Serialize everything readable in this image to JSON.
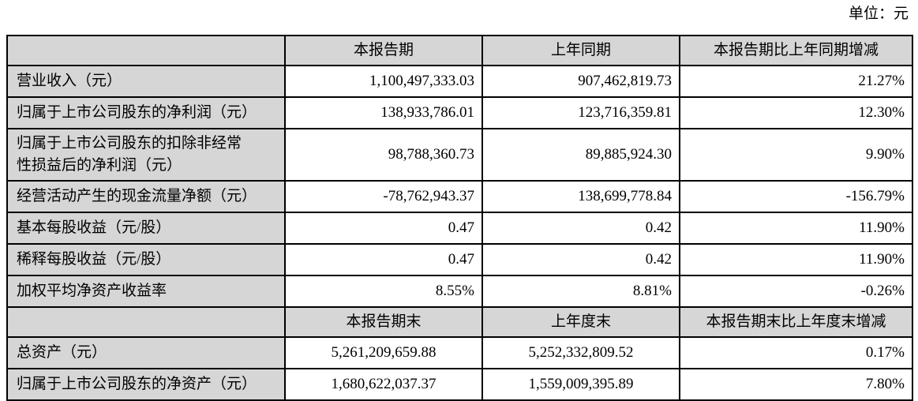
{
  "unit_label": "单位：元",
  "colors": {
    "shaded_cell_bg": "#d6d6d6",
    "border": "#000000",
    "text": "#000000",
    "page_bg": "#ffffff"
  },
  "table": {
    "rows": [
      {
        "type": "header",
        "cells": [
          "",
          "本报告期",
          "上年同期",
          "本报告期比上年同期增减"
        ]
      },
      {
        "type": "data",
        "cells": [
          "营业收入（元）",
          "1,100,497,333.03",
          "907,462,819.73",
          "21.27%"
        ],
        "value_align": [
          "right",
          "right",
          "right"
        ]
      },
      {
        "type": "data",
        "cells": [
          "归属于上市公司股东的净利润（元）",
          "138,933,786.01",
          "123,716,359.81",
          "12.30%"
        ],
        "value_align": [
          "right",
          "right",
          "right"
        ]
      },
      {
        "type": "data",
        "cells": [
          "归属于上市公司股东的扣除非经常\n性损益后的净利润（元）",
          "98,788,360.73",
          "89,885,924.30",
          "9.90%"
        ],
        "value_align": [
          "right",
          "right",
          "right"
        ]
      },
      {
        "type": "data",
        "cells": [
          "经营活动产生的现金流量净额（元）",
          "-78,762,943.37",
          "138,699,778.84",
          "-156.79%"
        ],
        "value_align": [
          "right",
          "right",
          "right"
        ]
      },
      {
        "type": "data",
        "cells": [
          "基本每股收益（元/股）",
          "0.47",
          "0.42",
          "11.90%"
        ],
        "value_align": [
          "right",
          "right",
          "right"
        ]
      },
      {
        "type": "data",
        "cells": [
          "稀释每股收益（元/股）",
          "0.47",
          "0.42",
          "11.90%"
        ],
        "value_align": [
          "right",
          "right",
          "right"
        ]
      },
      {
        "type": "data",
        "cells": [
          "加权平均净资产收益率",
          "8.55%",
          "8.81%",
          "-0.26%"
        ],
        "value_align": [
          "right",
          "right",
          "right"
        ]
      },
      {
        "type": "header",
        "cells": [
          "",
          "本报告期末",
          "上年度末",
          "本报告期末比上年度末增减"
        ]
      },
      {
        "type": "data",
        "cells": [
          "总资产（元）",
          "5,261,209,659.88",
          "5,252,332,809.52",
          "0.17%"
        ],
        "value_align": [
          "center",
          "center",
          "right"
        ]
      },
      {
        "type": "data",
        "cells": [
          "归属于上市公司股东的净资产（元）",
          "1,680,622,037.37",
          "1,559,009,395.89",
          "7.80%"
        ],
        "value_align": [
          "center",
          "center",
          "right"
        ]
      }
    ]
  }
}
